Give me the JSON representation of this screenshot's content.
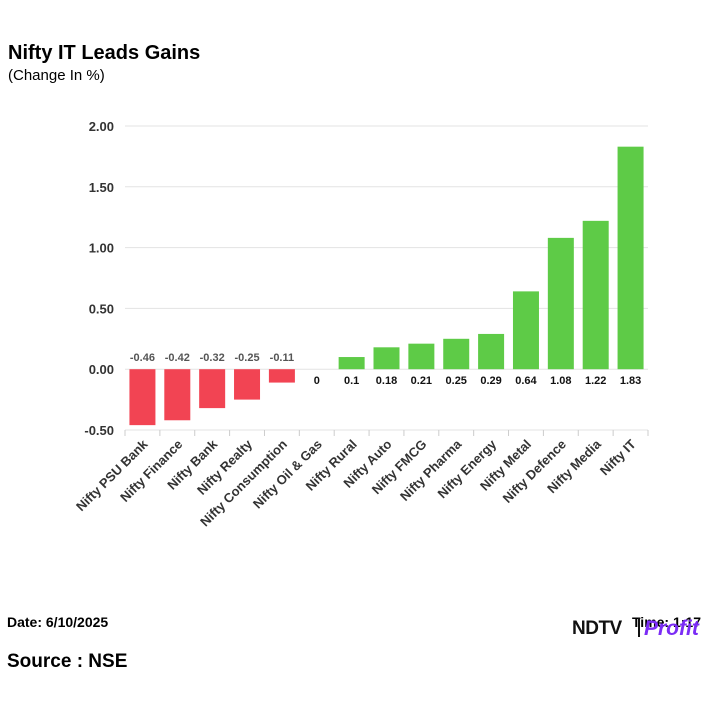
{
  "header": {
    "title": "Nifty IT Leads Gains",
    "subtitle": "(Change In %)"
  },
  "footer": {
    "date": "Date: 6/10/2025",
    "time": "Time: 1:17",
    "source": "Source : NSE"
  },
  "logo": {
    "text_main": "NDTV",
    "text_accent": "Profit",
    "main_color": "#111111",
    "accent_color": "#7b2cf5"
  },
  "chart_data": {
    "type": "bar",
    "categories": [
      "Nifty PSU Bank",
      "Nifty Finance",
      "Nifty Bank",
      "Nifty Realty",
      "Nifty Consumption",
      "Nifty Oil & Gas",
      "Nifty Rural",
      "Nifty Auto",
      "Nifty FMCG",
      "Nifty Pharma",
      "Nifty Energy",
      "Nifty Metal",
      "Nifty Defence",
      "Nifty Media",
      "Nifty IT"
    ],
    "values": [
      -0.46,
      -0.42,
      -0.32,
      -0.25,
      -0.11,
      0,
      0.1,
      0.18,
      0.21,
      0.25,
      0.29,
      0.64,
      1.08,
      1.22,
      1.83
    ],
    "value_labels": [
      "-0.46",
      "-0.42",
      "-0.32",
      "-0.25",
      "-0.11",
      "0",
      "0.1",
      "0.18",
      "0.21",
      "0.25",
      "0.29",
      "0.64",
      "1.08",
      "1.22",
      "1.83"
    ],
    "ylim": [
      -0.5,
      2.0
    ],
    "yticks": [
      "2.00",
      "1.50",
      "1.00",
      "0.50",
      "0.00",
      "-0.50"
    ],
    "ytick_values": [
      2.0,
      1.5,
      1.0,
      0.5,
      0.0,
      -0.5
    ],
    "grid": true,
    "colors": {
      "positive": "#5ecb47",
      "negative": "#f24453"
    },
    "title": "Nifty IT Leads Gains",
    "xlabel": "",
    "ylabel": ""
  }
}
